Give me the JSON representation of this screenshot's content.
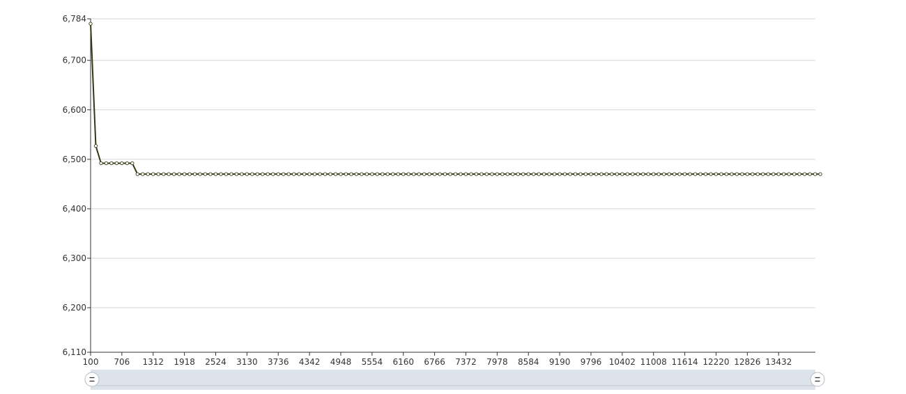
{
  "chart_data": {
    "type": "line",
    "title": "",
    "xlabel": "",
    "ylabel": "",
    "xlim": [
      100,
      14145
    ],
    "ylim": [
      6110,
      6784
    ],
    "grid": true,
    "legend": "none",
    "y_ticks": [
      6110,
      6200,
      6300,
      6400,
      6500,
      6600,
      6700,
      6784
    ],
    "y_tick_labels": [
      "6,110",
      "6,200",
      "6,300",
      "6,400",
      "6,500",
      "6,600",
      "6,700",
      "6,784"
    ],
    "x_ticks": [
      100,
      706,
      1312,
      1918,
      2524,
      3130,
      3736,
      4342,
      4948,
      5554,
      6160,
      6766,
      7372,
      7978,
      8584,
      9190,
      9796,
      10402,
      11008,
      11614,
      12220,
      12826,
      13432
    ],
    "x_tick_labels": [
      "100",
      "706",
      "1312",
      "1918",
      "2524",
      "3130",
      "3736",
      "4342",
      "4948",
      "5554",
      "6160",
      "6766",
      "7372",
      "7978",
      "8584",
      "9190",
      "9796",
      "10402",
      "11008",
      "11614",
      "12220",
      "12826",
      "13432"
    ],
    "series": [
      {
        "color": "#2f3a12",
        "marker_fill": "#ffffff",
        "x_start": 100,
        "x_step": 101,
        "values": [
          6774,
          6527,
          6492,
          6492,
          6492,
          6492,
          6492,
          6492,
          6492,
          6470,
          6470,
          6470,
          6470,
          6470,
          6470,
          6470,
          6470,
          6470,
          6470,
          6470,
          6470,
          6470,
          6470,
          6470,
          6470,
          6470,
          6470,
          6470,
          6470,
          6470,
          6470,
          6470,
          6470,
          6470,
          6470,
          6470,
          6470,
          6470,
          6470,
          6470,
          6470,
          6470,
          6470,
          6470,
          6470,
          6470,
          6470,
          6470,
          6470,
          6470,
          6470,
          6470,
          6470,
          6470,
          6470,
          6470,
          6470,
          6470,
          6470,
          6470,
          6470,
          6470,
          6470,
          6470,
          6470,
          6470,
          6470,
          6470,
          6470,
          6470,
          6470,
          6470,
          6470,
          6470,
          6470,
          6470,
          6470,
          6470,
          6470,
          6470,
          6470,
          6470,
          6470,
          6470,
          6470,
          6470,
          6470,
          6470,
          6470,
          6470,
          6470,
          6470,
          6470,
          6470,
          6470,
          6470,
          6470,
          6470,
          6470,
          6470,
          6470,
          6470,
          6470,
          6470,
          6470,
          6470,
          6470,
          6470,
          6470,
          6470,
          6470,
          6470,
          6470,
          6470,
          6470,
          6470,
          6470,
          6470,
          6470,
          6470,
          6470,
          6470,
          6470,
          6470,
          6470,
          6470,
          6470,
          6470,
          6470,
          6470,
          6470,
          6470,
          6470,
          6470,
          6470,
          6470,
          6470,
          6470,
          6470,
          6470,
          6470
        ]
      }
    ]
  },
  "range_slider": {
    "track_color": "#dde3ea",
    "start": 100,
    "end": 14145
  }
}
